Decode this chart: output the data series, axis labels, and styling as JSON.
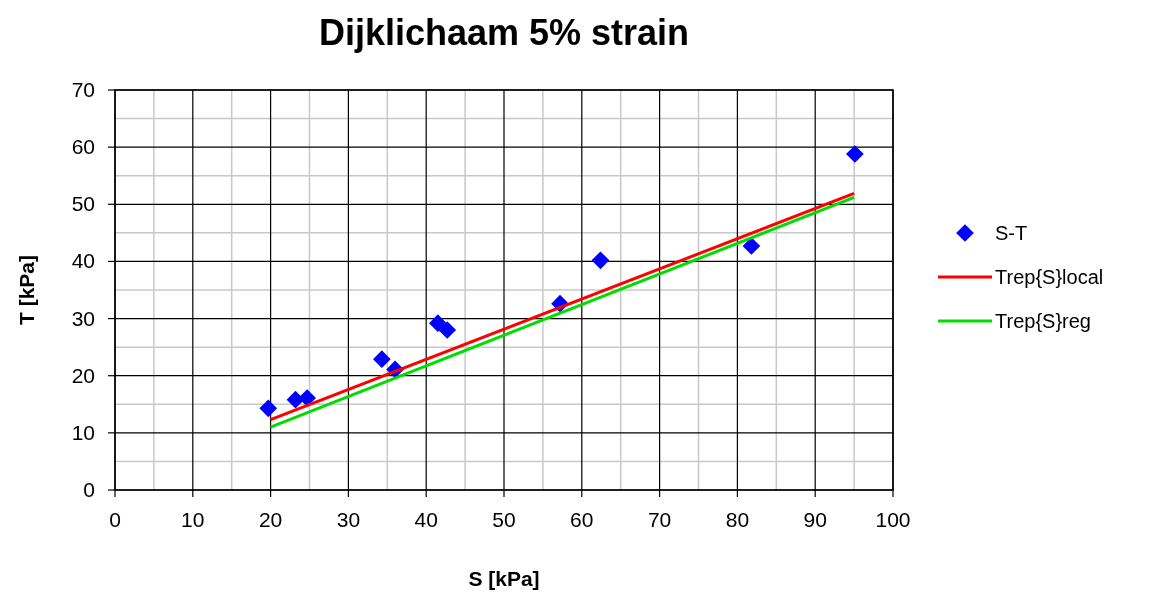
{
  "chart_data": {
    "type": "scatter",
    "title": "Dijklichaam 5% strain",
    "xlabel": "S [kPa]",
    "ylabel": "T [kPa]",
    "xlim": [
      0,
      100
    ],
    "xticks": [
      0,
      10,
      20,
      30,
      40,
      50,
      60,
      70,
      80,
      90,
      100
    ],
    "ylim": [
      0,
      70
    ],
    "yticks": [
      0,
      10,
      20,
      30,
      40,
      50,
      60,
      70
    ],
    "grid": true,
    "legend": "right",
    "series": [
      {
        "name": "S-T",
        "marker": "diamond",
        "color": "#0000ff",
        "x": [
          19.7,
          23.2,
          24.7,
          34.3,
          36.0,
          41.5,
          42.7,
          57.2,
          62.4,
          81.8,
          95.1
        ],
        "values": [
          14.3,
          15.8,
          16.1,
          22.9,
          21.1,
          29.2,
          28.0,
          32.6,
          40.2,
          42.7,
          58.8
        ]
      },
      {
        "name": "Trep{S}local",
        "type": "line",
        "marker": "none",
        "color": "#ff0000",
        "x": [
          20,
          95
        ],
        "values": [
          12.3,
          51.9
        ]
      },
      {
        "name": "Trep{S}reg",
        "type": "line",
        "marker": "none",
        "color": "#00dd00",
        "x": [
          20,
          95
        ],
        "values": [
          11.0,
          51.2
        ]
      }
    ]
  }
}
